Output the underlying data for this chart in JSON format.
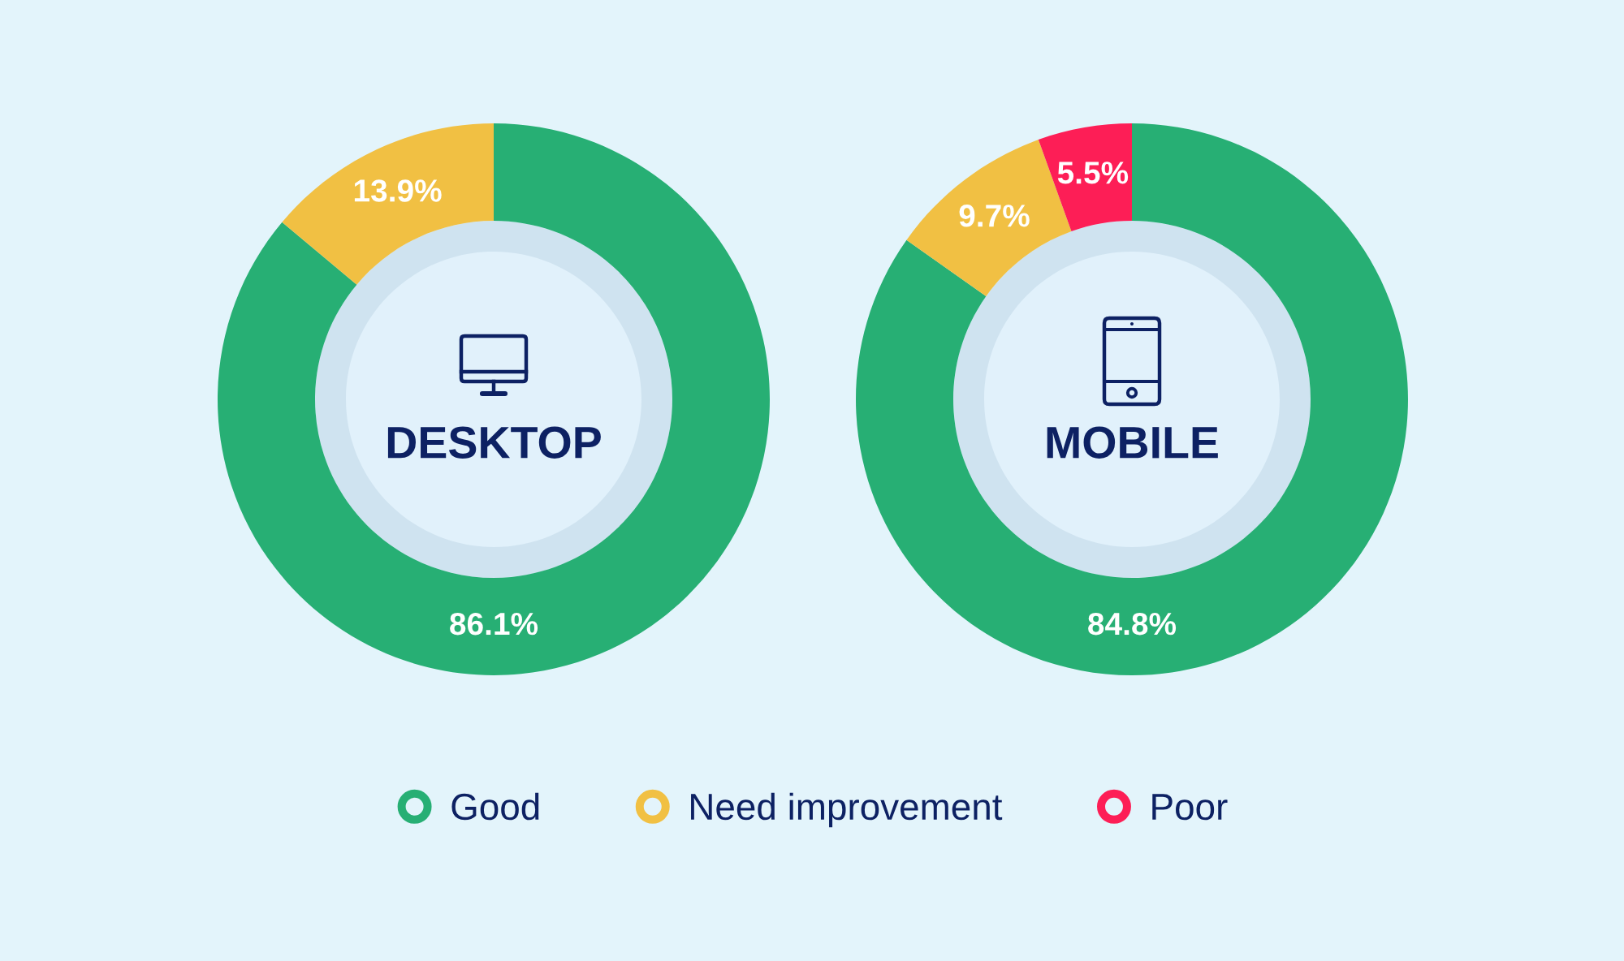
{
  "chart_data": [
    {
      "type": "donut",
      "title": "DESKTOP",
      "categories": [
        null,
        null
      ],
      "values": [
        86.1,
        13.9
      ],
      "colors": [
        "#27af74",
        "#f1c043"
      ],
      "value_labels": [
        "86.1%",
        "13.9%"
      ]
    },
    {
      "type": "donut",
      "title": "MOBILE",
      "categories": [
        "Good",
        "Need improvement",
        "Poor"
      ],
      "values": [
        84.8,
        9.7,
        5.5
      ],
      "colors": [
        "#27af74",
        "#f1c043",
        "#fd1e56"
      ],
      "value_labels": [
        "84.8%",
        "9.7%",
        "5.5%"
      ],
      "legend": "bottom"
    }
  ]
}
